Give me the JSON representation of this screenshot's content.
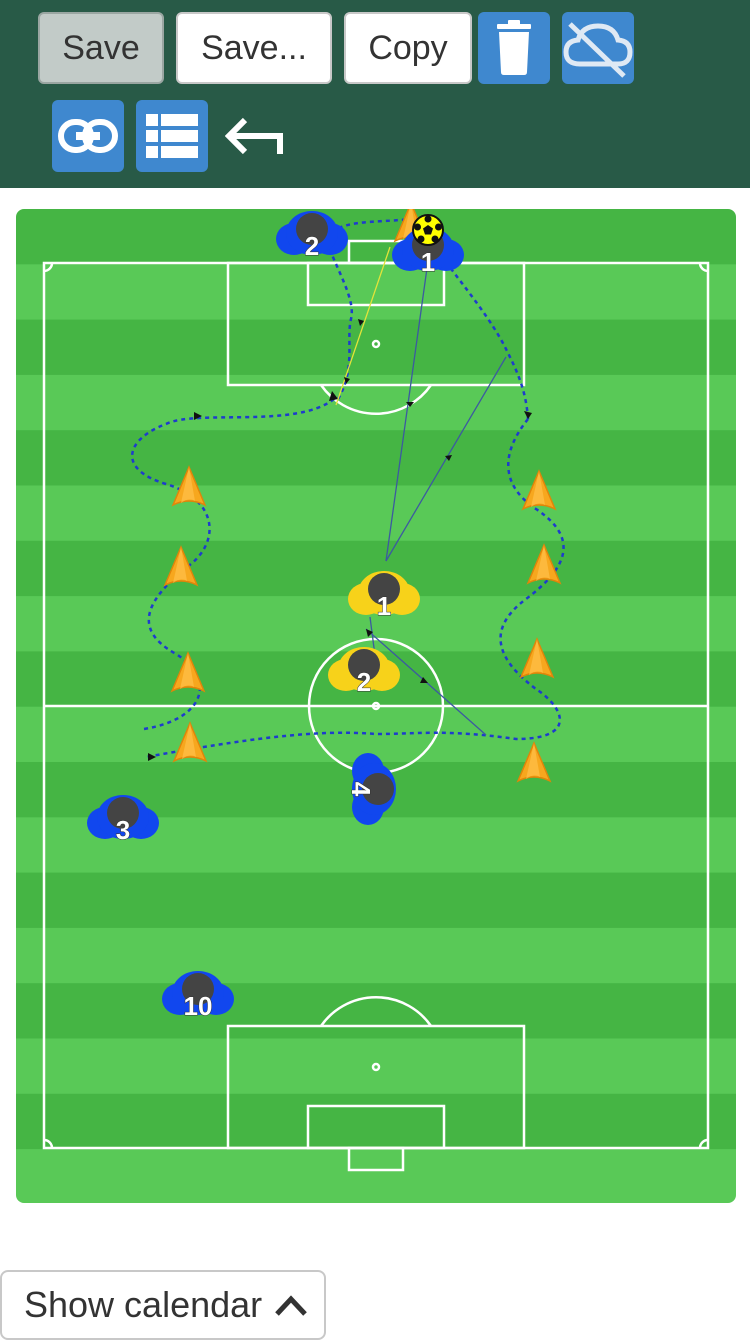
{
  "toolbar": {
    "save_label": "Save",
    "save_as_label": "Save...",
    "copy_label": "Copy",
    "icons": [
      "trash-icon",
      "cloud-off-icon",
      "link-icon",
      "list-icon",
      "undo-arrow-icon"
    ],
    "colors": {
      "toolbar_bg": "#285a47",
      "icon_button_bg": "#3f88cf"
    }
  },
  "pitch": {
    "colors": {
      "stripe_light": "#59c957",
      "stripe_dark": "#45b544",
      "lines": "#ffffff"
    },
    "players": [
      {
        "team": "blue",
        "number": "2"
      },
      {
        "team": "blue",
        "number": "1"
      },
      {
        "team": "yellow",
        "number": "1"
      },
      {
        "team": "yellow",
        "number": "2"
      },
      {
        "team": "blue",
        "number": "4"
      },
      {
        "team": "blue",
        "number": "3"
      },
      {
        "team": "blue",
        "number": "10"
      }
    ],
    "cone_count": 10,
    "ball": "soccer-ball-icon"
  },
  "calendar": {
    "label": "Show calendar",
    "icon": "chevron-up-icon"
  }
}
